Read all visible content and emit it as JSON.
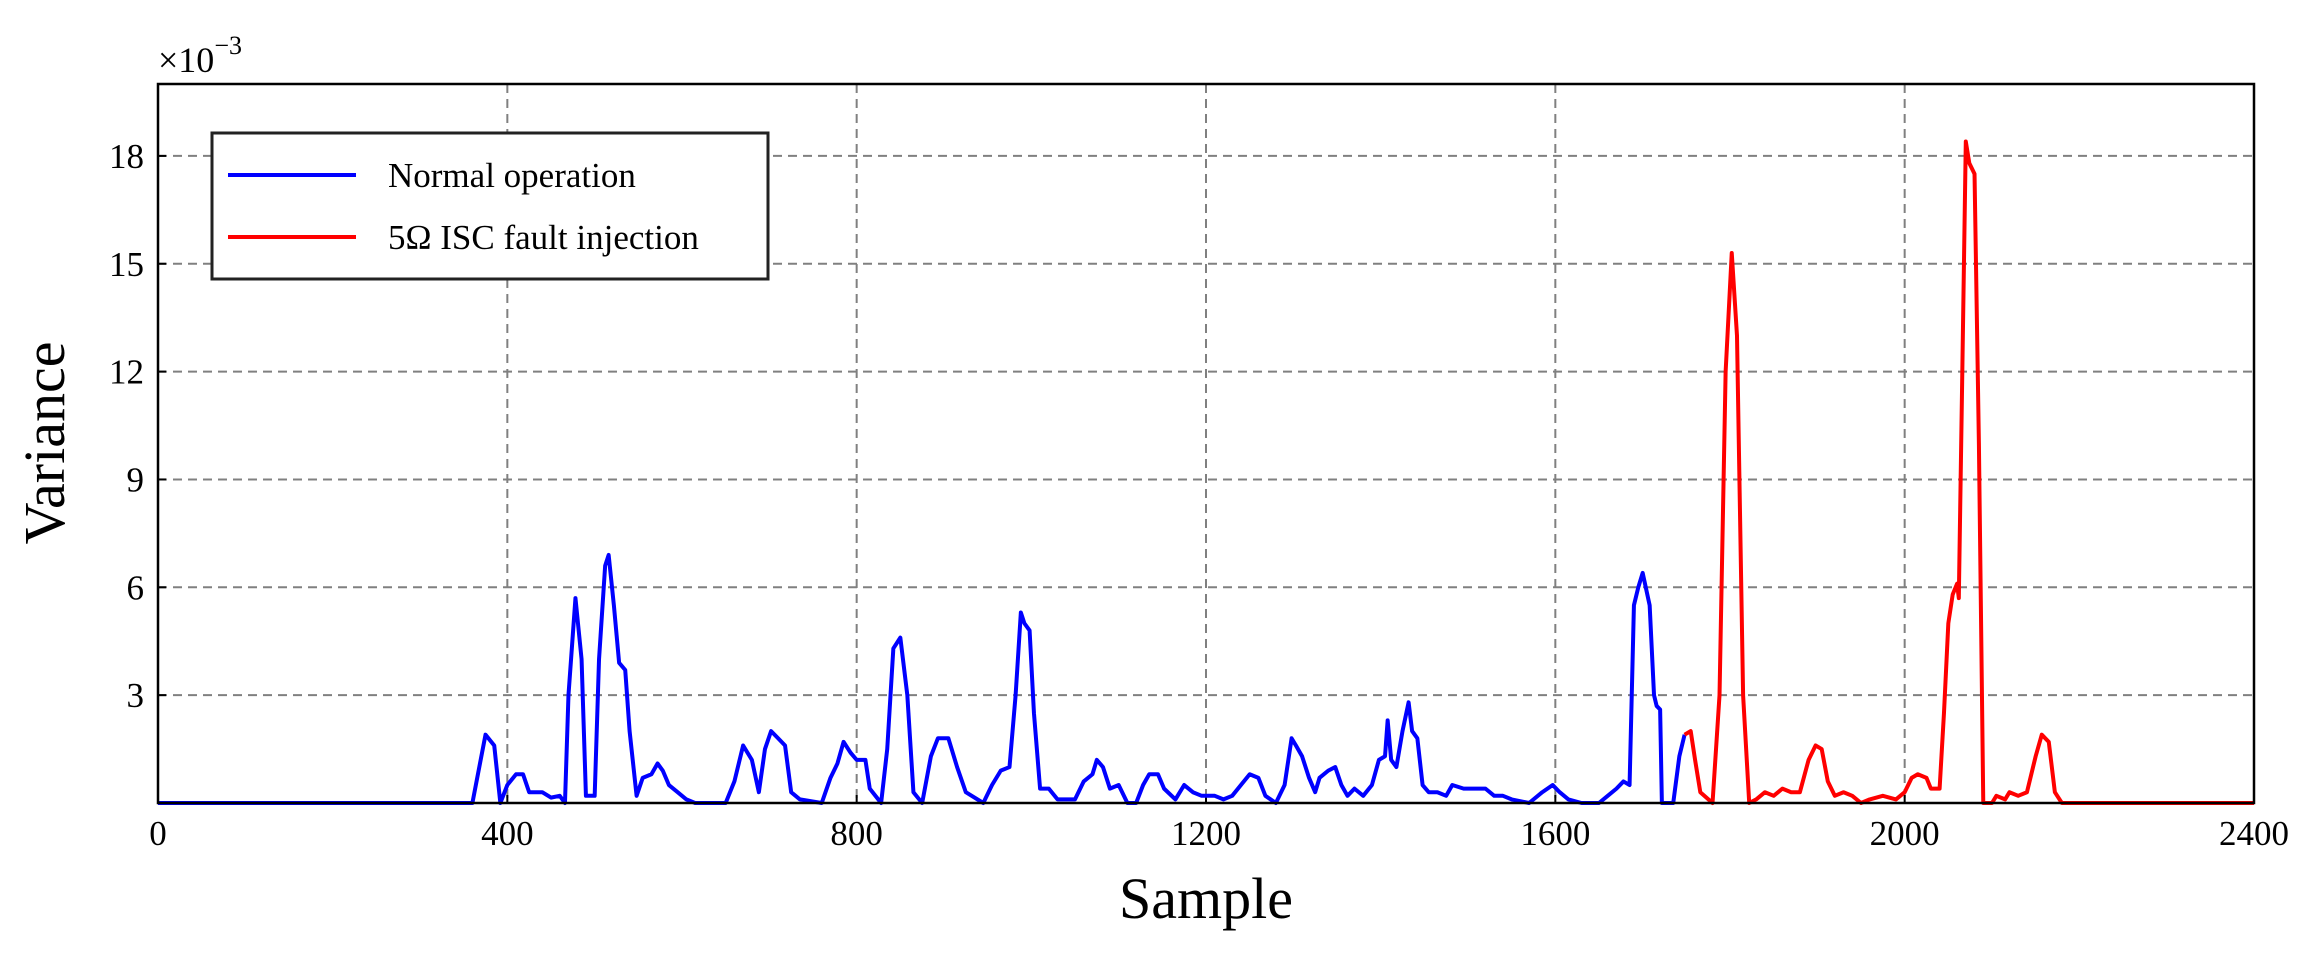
{
  "chart_data": {
    "type": "line",
    "xlabel": "Sample",
    "ylabel": "Variance",
    "y_scale_label": "×10",
    "y_scale_exponent": "−3",
    "xlim": [
      0,
      2400
    ],
    "ylim": [
      0,
      20
    ],
    "xticks": [
      0,
      400,
      800,
      1200,
      1600,
      2000,
      2400
    ],
    "yticks": [
      3,
      6,
      9,
      12,
      15,
      18
    ],
    "grid": true,
    "legend": "upper left",
    "series": [
      {
        "name": "Normal operation",
        "color": "#0000ff",
        "x": [
          0,
          360,
          375,
          385,
          392,
          400,
          410,
          418,
          425,
          440,
          450,
          460,
          466,
          470,
          478,
          485,
          490,
          500,
          505,
          512,
          516,
          522,
          528,
          535,
          540,
          548,
          555,
          565,
          572,
          578,
          585,
          595,
          605,
          615,
          650,
          660,
          670,
          680,
          688,
          695,
          702,
          710,
          718,
          725,
          735,
          760,
          770,
          778,
          785,
          793,
          800,
          810,
          815,
          828,
          835,
          842,
          850,
          858,
          865,
          875,
          885,
          893,
          905,
          915,
          925,
          945,
          955,
          965,
          975,
          982,
          988,
          992,
          998,
          1003,
          1010,
          1020,
          1030,
          1050,
          1060,
          1070,
          1075,
          1082,
          1090,
          1100,
          1110,
          1120,
          1128,
          1135,
          1145,
          1152,
          1165,
          1175,
          1185,
          1195,
          1210,
          1220,
          1230,
          1240,
          1250,
          1260,
          1268,
          1280,
          1290,
          1298,
          1303,
          1310,
          1318,
          1325,
          1330,
          1340,
          1348,
          1355,
          1362,
          1370,
          1380,
          1390,
          1398,
          1405,
          1408,
          1412,
          1418,
          1425,
          1432,
          1436,
          1442,
          1448,
          1455,
          1465,
          1475,
          1482,
          1495,
          1510,
          1520,
          1530,
          1540,
          1550,
          1570,
          1585,
          1597,
          1605,
          1615,
          1630,
          1650,
          1660,
          1670,
          1678,
          1685,
          1690,
          1695,
          1700,
          1708,
          1713,
          1716,
          1720,
          1722,
          1735,
          1742,
          1748
        ],
        "values": [
          0,
          0,
          1.9,
          1.6,
          0,
          0.5,
          0.8,
          0.8,
          0.3,
          0.3,
          0.15,
          0.2,
          0,
          3,
          5.7,
          4,
          0.2,
          0.2,
          4,
          6.6,
          6.9,
          5.5,
          3.9,
          3.7,
          2,
          0.2,
          0.7,
          0.8,
          1.1,
          0.9,
          0.5,
          0.3,
          0.1,
          0,
          0,
          0.6,
          1.6,
          1.2,
          0.3,
          1.5,
          2,
          1.8,
          1.6,
          0.3,
          0.1,
          0,
          0.7,
          1.1,
          1.7,
          1.4,
          1.2,
          1.2,
          0.4,
          0,
          1.5,
          4.3,
          4.6,
          3,
          0.3,
          0,
          1.3,
          1.8,
          1.8,
          1,
          0.3,
          0,
          0.5,
          0.9,
          1,
          3,
          5.3,
          5,
          4.8,
          2.5,
          0.4,
          0.4,
          0.1,
          0.1,
          0.6,
          0.8,
          1.2,
          1,
          0.4,
          0.5,
          0,
          0,
          0.5,
          0.8,
          0.8,
          0.4,
          0.1,
          0.5,
          0.3,
          0.2,
          0.2,
          0.1,
          0.2,
          0.5,
          0.8,
          0.7,
          0.2,
          0,
          0.5,
          1.8,
          1.6,
          1.3,
          0.7,
          0.3,
          0.7,
          0.9,
          1,
          0.5,
          0.2,
          0.4,
          0.2,
          0.5,
          1.2,
          1.3,
          2.3,
          1.2,
          1,
          2,
          2.8,
          2,
          1.8,
          0.5,
          0.3,
          0.3,
          0.2,
          0.5,
          0.4,
          0.4,
          0.4,
          0.2,
          0.2,
          0.1,
          0,
          0.3,
          0.5,
          0.3,
          0.1,
          0,
          0,
          0.2,
          0.4,
          0.6,
          0.5,
          5.5,
          6,
          6.4,
          5.5,
          3,
          2.7,
          2.6,
          0,
          0,
          1.3,
          1.9
        ]
      },
      {
        "name": "5Ω ISC fault injection",
        "color": "#ff0000",
        "x": [
          1748,
          1755,
          1760,
          1766,
          1780,
          1788,
          1795,
          1802,
          1808,
          1815,
          1822,
          1830,
          1840,
          1850,
          1860,
          1870,
          1880,
          1890,
          1898,
          1905,
          1912,
          1920,
          1930,
          1940,
          1950,
          1960,
          1975,
          1990,
          2000,
          2008,
          2015,
          2025,
          2030,
          2040,
          2045,
          2050,
          2055,
          2060,
          2062,
          2066,
          2070,
          2074,
          2080,
          2085,
          2090,
          2100,
          2105,
          2115,
          2120,
          2130,
          2140,
          2150,
          2157,
          2165,
          2172,
          2180,
          2400
        ],
        "values": [
          1.9,
          2,
          1.2,
          0.3,
          0,
          3,
          12,
          15.3,
          13,
          3,
          0,
          0.1,
          0.3,
          0.2,
          0.4,
          0.3,
          0.3,
          1.2,
          1.6,
          1.5,
          0.6,
          0.2,
          0.3,
          0.2,
          0,
          0.1,
          0.2,
          0.1,
          0.3,
          0.7,
          0.8,
          0.7,
          0.4,
          0.4,
          2.5,
          5,
          5.8,
          6.1,
          5.7,
          12,
          18.4,
          17.8,
          17.5,
          10,
          0,
          0,
          0.2,
          0.1,
          0.3,
          0.2,
          0.3,
          1.3,
          1.9,
          1.7,
          0.3,
          0,
          0
        ]
      }
    ]
  }
}
